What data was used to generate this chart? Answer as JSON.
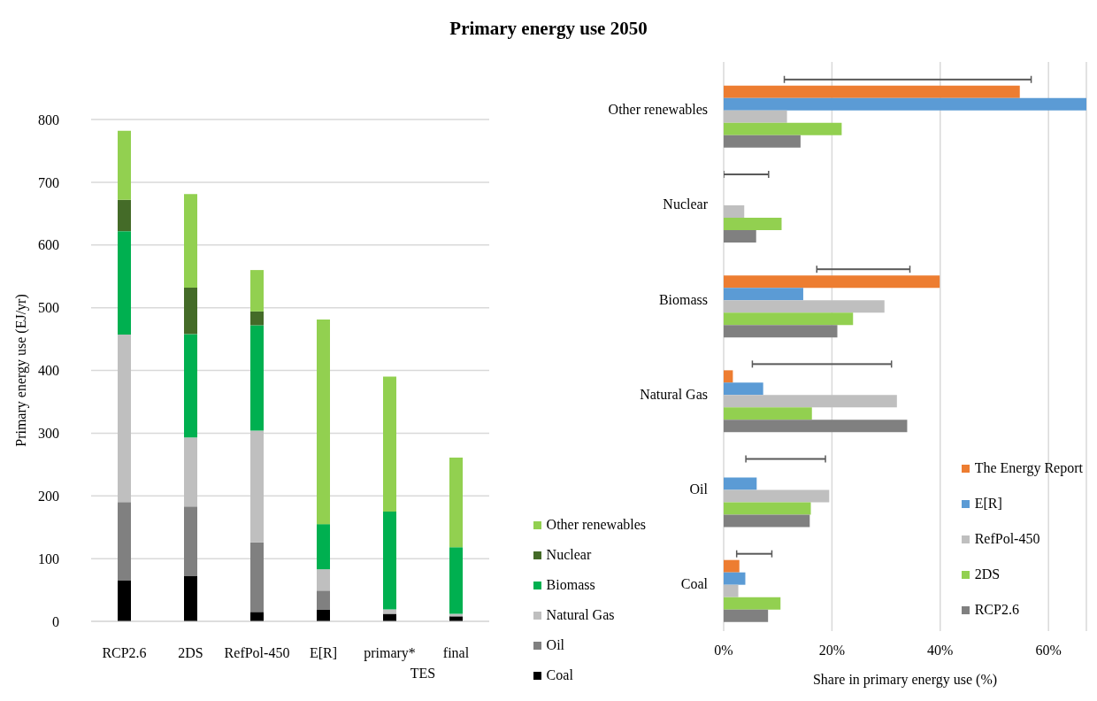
{
  "chart_data": [
    {
      "type": "bar",
      "title": "Primary energy use 2050",
      "stacked": true,
      "ylabel": "Primary energy use (EJ/yr)",
      "categories": [
        "RCP2.6",
        "2DS",
        "RefPol-450",
        "E[R]",
        "primary*",
        "final"
      ],
      "annotations": [
        "TES"
      ],
      "series": [
        {
          "name": "Coal",
          "color": "#000000",
          "values": [
            65,
            72,
            15,
            19,
            12,
            8
          ]
        },
        {
          "name": "Oil",
          "color": "#808080",
          "values": [
            125,
            111,
            111,
            30,
            0,
            0
          ]
        },
        {
          "name": "Natural Gas",
          "color": "#bfbfbf",
          "values": [
            267,
            110,
            178,
            34,
            7,
            4
          ]
        },
        {
          "name": "Biomass",
          "color": "#00b050",
          "values": [
            165,
            165,
            168,
            72,
            156,
            106
          ]
        },
        {
          "name": "Nuclear",
          "color": "#446b28",
          "values": [
            50,
            74,
            22,
            0,
            0,
            0
          ]
        },
        {
          "name": "Other renewables",
          "color": "#92d050",
          "values": [
            110,
            149,
            66,
            326,
            215,
            143
          ]
        }
      ],
      "ylim": [
        0,
        800
      ],
      "yticks": [
        0,
        100,
        200,
        300,
        400,
        500,
        600,
        700,
        800
      ],
      "grid": "y",
      "legend": "bottom right"
    },
    {
      "type": "bar",
      "orientation": "horizontal",
      "xlabel": "Share in primary energy use (%)",
      "categories": [
        "Other renewables",
        "Nuclear",
        "Biomass",
        "Natural Gas",
        "Oil",
        "Coal"
      ],
      "series": [
        {
          "color": "#595959",
          "base": [
            11.2,
            0,
            17.2,
            5.3,
            4.1,
            2.4
          ],
          "values": [
            45.6,
            8.3,
            17.2,
            25.7,
            14.7,
            6.5
          ]
        },
        {
          "name": "The Energy Report",
          "color": "#ed7d31",
          "values": [
            54.7,
            null,
            39.9,
            1.7,
            null,
            2.9
          ]
        },
        {
          "name": "E[R]",
          "color": "#5b9bd5",
          "values": [
            67,
            null,
            14.7,
            7.3,
            6.1,
            4.0
          ]
        },
        {
          "name": "RefPol-450",
          "color": "#bfbfbf",
          "values": [
            11.7,
            3.8,
            29.7,
            32.0,
            19.5,
            2.7
          ]
        },
        {
          "name": "2DS",
          "color": "#92d050",
          "values": [
            21.8,
            10.7,
            23.9,
            16.3,
            16.1,
            10.5
          ]
        },
        {
          "name": "RCP2.6",
          "color": "#808080",
          "values": [
            14.2,
            6.0,
            21.0,
            33.9,
            15.9,
            8.2
          ]
        }
      ],
      "xlim": [
        0,
        67
      ],
      "xticks": [
        {
          "value": 0,
          "label": "0%"
        },
        {
          "value": 20,
          "label": "20%"
        },
        {
          "value": 40,
          "label": "40%"
        },
        {
          "value": 60,
          "label": "60%"
        }
      ],
      "grid": "x",
      "legend": "bottom right"
    }
  ]
}
